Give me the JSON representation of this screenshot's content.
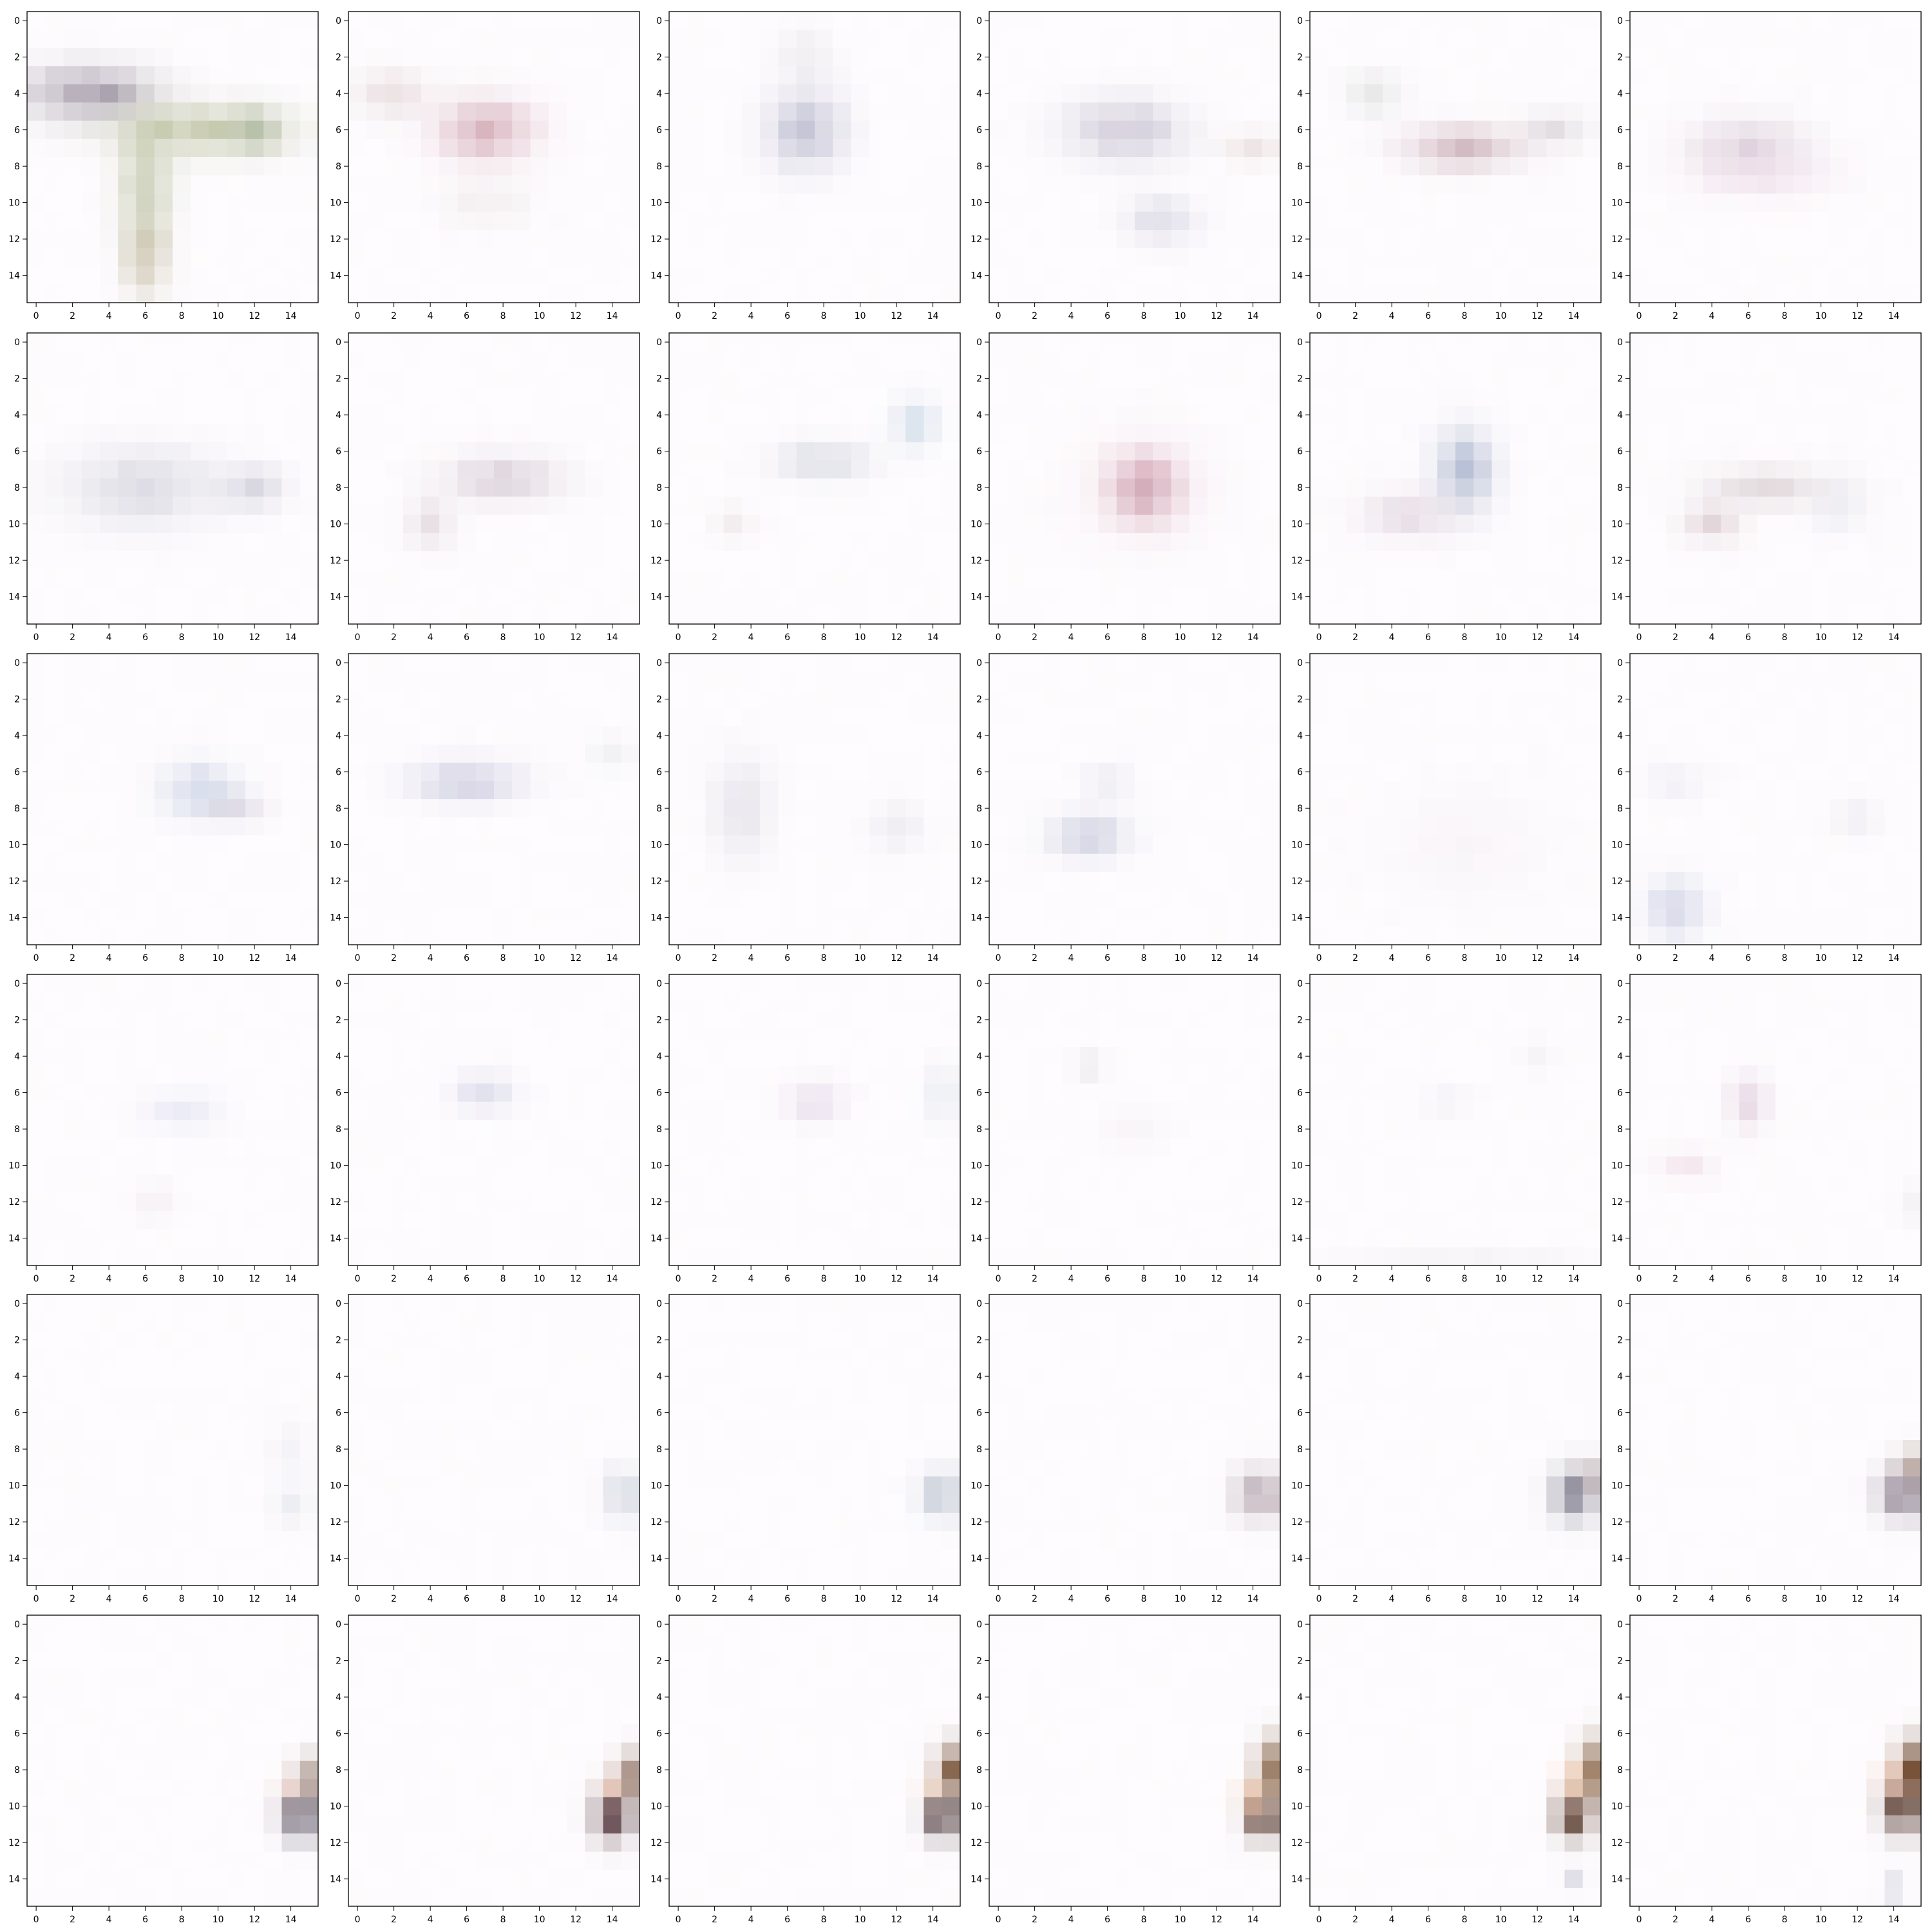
{
  "figure": {
    "layout": "6x6 grid of heatmap panels",
    "background": "#ffffff",
    "frame_color": "#000000"
  },
  "chart_data": {
    "type": "heatmap",
    "grid": [
      6,
      6
    ],
    "pixels_per_panel": [
      16,
      16
    ],
    "xticks": [
      "0",
      "2",
      "4",
      "6",
      "8",
      "10",
      "12",
      "14"
    ],
    "yticks": [
      "0",
      "2",
      "4",
      "6",
      "8",
      "10",
      "12",
      "14"
    ],
    "xlim": [
      -0.5,
      15.5
    ],
    "ylim": [
      15.5,
      -0.5
    ],
    "title": "",
    "xlabel": "",
    "ylabel": "",
    "panels": [
      {
        "index": 1,
        "blobs": [
          {
            "x": 3,
            "y": 4,
            "rx": 3.2,
            "ry": 1.4,
            "color": "#8f8596",
            "strength": 0.75
          },
          {
            "x": 9,
            "y": 6,
            "rx": 4.5,
            "ry": 1.3,
            "color": "#a6ae7e",
            "strength": 0.6
          },
          {
            "x": 6,
            "y": 9,
            "rx": 1.4,
            "ry": 3.5,
            "color": "#aab48c",
            "strength": 0.55
          },
          {
            "x": 6,
            "y": 13,
            "rx": 1.1,
            "ry": 2.0,
            "color": "#b6a98a",
            "strength": 0.55
          },
          {
            "x": 12,
            "y": 6,
            "rx": 1.3,
            "ry": 1.2,
            "color": "#9fae93",
            "strength": 0.55
          }
        ]
      },
      {
        "index": 2,
        "blobs": [
          {
            "x": 7,
            "y": 6,
            "rx": 2.5,
            "ry": 1.6,
            "color": "#c48b9c",
            "strength": 0.6
          },
          {
            "x": 2,
            "y": 4,
            "rx": 1.8,
            "ry": 1.2,
            "color": "#cbb5b7",
            "strength": 0.4
          },
          {
            "x": 7,
            "y": 10,
            "rx": 2.5,
            "ry": 1.2,
            "color": "#e0d8d8",
            "strength": 0.3
          }
        ]
      },
      {
        "index": 3,
        "blobs": [
          {
            "x": 7,
            "y": 6,
            "rx": 2.0,
            "ry": 2.0,
            "color": "#9c9cb8",
            "strength": 0.55
          },
          {
            "x": 7,
            "y": 2,
            "rx": 1.5,
            "ry": 1.5,
            "color": "#d6d0d8",
            "strength": 0.3
          }
        ]
      },
      {
        "index": 4,
        "blobs": [
          {
            "x": 7,
            "y": 6,
            "rx": 3.0,
            "ry": 1.6,
            "color": "#a8a0b8",
            "strength": 0.5
          },
          {
            "x": 9,
            "y": 11,
            "rx": 1.8,
            "ry": 1.2,
            "color": "#b8b8cc",
            "strength": 0.45
          },
          {
            "x": 14,
            "y": 7,
            "rx": 1.5,
            "ry": 0.8,
            "color": "#d8c8c4",
            "strength": 0.45
          }
        ]
      },
      {
        "index": 5,
        "blobs": [
          {
            "x": 8,
            "y": 7,
            "rx": 3.0,
            "ry": 1.1,
            "color": "#b58e9a",
            "strength": 0.55
          },
          {
            "x": 3,
            "y": 4,
            "rx": 1.5,
            "ry": 1.2,
            "color": "#cdd0cd",
            "strength": 0.4
          },
          {
            "x": 13,
            "y": 6,
            "rx": 1.6,
            "ry": 0.9,
            "color": "#c0b8bc",
            "strength": 0.4
          }
        ]
      },
      {
        "index": 6,
        "blobs": [
          {
            "x": 6,
            "y": 7,
            "rx": 3.0,
            "ry": 1.5,
            "color": "#c0a8bc",
            "strength": 0.45
          },
          {
            "x": 7,
            "y": 8.5,
            "rx": 3.5,
            "ry": 1.2,
            "color": "#e8c8dc",
            "strength": 0.35
          }
        ]
      },
      {
        "index": 7,
        "blobs": [
          {
            "x": 6,
            "y": 8,
            "rx": 4.0,
            "ry": 2.0,
            "color": "#b8b8c8",
            "strength": 0.45
          },
          {
            "x": 12,
            "y": 8,
            "rx": 1.5,
            "ry": 1.0,
            "color": "#a8a8bc",
            "strength": 0.45
          }
        ]
      },
      {
        "index": 8,
        "blobs": [
          {
            "x": 8,
            "y": 7.5,
            "rx": 3.0,
            "ry": 1.2,
            "color": "#b8a4b4",
            "strength": 0.45
          },
          {
            "x": 4,
            "y": 10,
            "rx": 1.2,
            "ry": 1.3,
            "color": "#c8b8c0",
            "strength": 0.4
          }
        ]
      },
      {
        "index": 9,
        "blobs": [
          {
            "x": 8,
            "y": 6.5,
            "rx": 2.5,
            "ry": 1.0,
            "color": "#b8bccc",
            "strength": 0.45
          },
          {
            "x": 13,
            "y": 4.5,
            "rx": 1.2,
            "ry": 1.3,
            "color": "#b8ccdc",
            "strength": 0.5
          },
          {
            "x": 3,
            "y": 10,
            "rx": 1.0,
            "ry": 1.0,
            "color": "#dcd0d0",
            "strength": 0.3
          }
        ]
      },
      {
        "index": 10,
        "blobs": [
          {
            "x": 8,
            "y": 8,
            "rx": 1.6,
            "ry": 1.6,
            "color": "#b07088",
            "strength": 0.65
          },
          {
            "x": 8,
            "y": 8,
            "rx": 3.0,
            "ry": 2.5,
            "color": "#e4bcc8",
            "strength": 0.35
          }
        ]
      },
      {
        "index": 11,
        "blobs": [
          {
            "x": 8,
            "y": 7,
            "rx": 1.5,
            "ry": 2.0,
            "color": "#8c9cbc",
            "strength": 0.6
          },
          {
            "x": 5,
            "y": 9.5,
            "rx": 2.5,
            "ry": 1.2,
            "color": "#c8b0c4",
            "strength": 0.4
          }
        ]
      },
      {
        "index": 12,
        "blobs": [
          {
            "x": 7,
            "y": 8,
            "rx": 3.0,
            "ry": 1.0,
            "color": "#c0b0b4",
            "strength": 0.45
          },
          {
            "x": 4,
            "y": 10,
            "rx": 1.5,
            "ry": 1.0,
            "color": "#c8b0b4",
            "strength": 0.45
          },
          {
            "x": 11,
            "y": 9,
            "rx": 1.5,
            "ry": 1.5,
            "color": "#ccd0dc",
            "strength": 0.3
          }
        ]
      },
      {
        "index": 13,
        "blobs": [
          {
            "x": 9,
            "y": 7,
            "rx": 2.0,
            "ry": 1.4,
            "color": "#a8b8d4",
            "strength": 0.5
          },
          {
            "x": 11,
            "y": 8,
            "rx": 1.5,
            "ry": 0.8,
            "color": "#bcb4c8",
            "strength": 0.4
          }
        ]
      },
      {
        "index": 14,
        "blobs": [
          {
            "x": 6,
            "y": 6.5,
            "rx": 2.8,
            "ry": 1.1,
            "color": "#a8a8c8",
            "strength": 0.5
          },
          {
            "x": 14,
            "y": 5,
            "rx": 1.3,
            "ry": 1.0,
            "color": "#d8dcdc",
            "strength": 0.3
          }
        ]
      },
      {
        "index": 15,
        "blobs": [
          {
            "x": 3.5,
            "y": 8,
            "rx": 1.5,
            "ry": 2.5,
            "color": "#c4c0d0",
            "strength": 0.4
          },
          {
            "x": 12,
            "y": 9,
            "rx": 1.5,
            "ry": 1.2,
            "color": "#d0ccd8",
            "strength": 0.3
          }
        ]
      },
      {
        "index": 16,
        "blobs": [
          {
            "x": 5,
            "y": 9.5,
            "rx": 2.0,
            "ry": 1.2,
            "color": "#a8acc8",
            "strength": 0.5
          },
          {
            "x": 6,
            "y": 6.5,
            "rx": 1.2,
            "ry": 1.0,
            "color": "#ccccdc",
            "strength": 0.3
          }
        ]
      },
      {
        "index": 17,
        "blobs": [
          {
            "x": 8,
            "y": 10,
            "rx": 4.0,
            "ry": 3.0,
            "color": "#ece4ec",
            "strength": 0.25
          }
        ]
      },
      {
        "index": 18,
        "blobs": [
          {
            "x": 2,
            "y": 13.5,
            "rx": 1.5,
            "ry": 1.5,
            "color": "#a8b0d0",
            "strength": 0.5
          },
          {
            "x": 2,
            "y": 6.5,
            "rx": 1.5,
            "ry": 1.0,
            "color": "#d4d4e4",
            "strength": 0.3
          },
          {
            "x": 12,
            "y": 8.5,
            "rx": 1.2,
            "ry": 0.8,
            "color": "#d4d0dc",
            "strength": 0.3
          }
        ]
      },
      {
        "index": 19,
        "blobs": [
          {
            "x": 8,
            "y": 7,
            "rx": 2.0,
            "ry": 1.0,
            "color": "#ccd0e8",
            "strength": 0.35
          },
          {
            "x": 6.5,
            "y": 12,
            "rx": 1.0,
            "ry": 1.0,
            "color": "#e4d8e0",
            "strength": 0.3
          }
        ]
      },
      {
        "index": 20,
        "blobs": [
          {
            "x": 7,
            "y": 6,
            "rx": 1.5,
            "ry": 1.0,
            "color": "#b8bcd8",
            "strength": 0.45
          }
        ]
      },
      {
        "index": 21,
        "blobs": [
          {
            "x": 7.5,
            "y": 6.5,
            "rx": 1.5,
            "ry": 1.0,
            "color": "#d4c0dc",
            "strength": 0.45
          },
          {
            "x": 14.5,
            "y": 6,
            "rx": 0.9,
            "ry": 1.5,
            "color": "#c8d4e0",
            "strength": 0.4
          }
        ]
      },
      {
        "index": 22,
        "blobs": [
          {
            "x": 5,
            "y": 4.5,
            "rx": 0.9,
            "ry": 0.8,
            "color": "#d8d4dc",
            "strength": 0.35
          },
          {
            "x": 7.5,
            "y": 8,
            "rx": 1.5,
            "ry": 1.0,
            "color": "#ece4ec",
            "strength": 0.3
          }
        ]
      },
      {
        "index": 23,
        "blobs": [
          {
            "x": 7,
            "y": 6.5,
            "rx": 1.5,
            "ry": 0.8,
            "color": "#e4e0ec",
            "strength": 0.3
          },
          {
            "x": 12,
            "y": 4,
            "rx": 0.9,
            "ry": 0.9,
            "color": "#e0dce4",
            "strength": 0.3
          },
          {
            "x": 8,
            "y": 15,
            "rx": 6.0,
            "ry": 0.6,
            "color": "#e8e4e8",
            "strength": 0.3
          }
        ]
      },
      {
        "index": 24,
        "blobs": [
          {
            "x": 6,
            "y": 6.5,
            "rx": 1.0,
            "ry": 1.3,
            "color": "#c8aac4",
            "strength": 0.45
          },
          {
            "x": 2.5,
            "y": 10,
            "rx": 1.5,
            "ry": 0.8,
            "color": "#e4c4d0",
            "strength": 0.35
          },
          {
            "x": 15,
            "y": 12,
            "rx": 0.8,
            "ry": 1.0,
            "color": "#dcdcdc",
            "strength": 0.3
          }
        ]
      },
      {
        "index": 25,
        "blobs": [
          {
            "x": 14,
            "y": 8,
            "rx": 1.0,
            "ry": 1.5,
            "color": "#dcdce4",
            "strength": 0.3
          },
          {
            "x": 14,
            "y": 11,
            "rx": 1.0,
            "ry": 1.0,
            "color": "#ccd4e0",
            "strength": 0.35
          }
        ]
      },
      {
        "index": 26,
        "blobs": [
          {
            "x": 14.5,
            "y": 10.5,
            "rx": 1.0,
            "ry": 1.3,
            "color": "#b0b8c8",
            "strength": 0.5
          }
        ]
      },
      {
        "index": 27,
        "blobs": [
          {
            "x": 14.5,
            "y": 10.5,
            "rx": 1.2,
            "ry": 1.2,
            "color": "#98a4b8",
            "strength": 0.55
          }
        ]
      },
      {
        "index": 28,
        "blobs": [
          {
            "x": 14.3,
            "y": 10.5,
            "rx": 1.2,
            "ry": 1.3,
            "color": "#8a7480",
            "strength": 0.6
          }
        ]
      },
      {
        "index": 29,
        "blobs": [
          {
            "x": 14,
            "y": 10.5,
            "rx": 1.1,
            "ry": 1.3,
            "color": "#5c5c70",
            "strength": 0.75
          },
          {
            "x": 15,
            "y": 9.5,
            "rx": 0.9,
            "ry": 1.0,
            "color": "#b4a4a4",
            "strength": 0.5
          }
        ]
      },
      {
        "index": 30,
        "blobs": [
          {
            "x": 14.5,
            "y": 10.5,
            "rx": 1.2,
            "ry": 1.2,
            "color": "#5c4c64",
            "strength": 0.75
          },
          {
            "x": 15,
            "y": 9,
            "rx": 0.8,
            "ry": 1.0,
            "color": "#9c8478",
            "strength": 0.6
          }
        ]
      },
      {
        "index": 31,
        "blobs": [
          {
            "x": 14.5,
            "y": 10.5,
            "rx": 1.0,
            "ry": 1.2,
            "color": "#3c3448",
            "strength": 0.8
          },
          {
            "x": 15,
            "y": 8.5,
            "rx": 0.8,
            "ry": 1.2,
            "color": "#8c7468",
            "strength": 0.65
          },
          {
            "x": 14,
            "y": 9,
            "rx": 0.8,
            "ry": 0.8,
            "color": "#f8d0c0",
            "strength": 0.5
          }
        ]
      },
      {
        "index": 32,
        "blobs": [
          {
            "x": 14,
            "y": 10.5,
            "rx": 1.0,
            "ry": 1.3,
            "color": "#3c1c24",
            "strength": 0.8
          },
          {
            "x": 15,
            "y": 8.5,
            "rx": 0.8,
            "ry": 1.3,
            "color": "#7c5c4c",
            "strength": 0.7
          },
          {
            "x": 14,
            "y": 9,
            "rx": 0.8,
            "ry": 0.8,
            "color": "#fcd0b8",
            "strength": 0.5
          }
        ]
      },
      {
        "index": 33,
        "blobs": [
          {
            "x": 14.5,
            "y": 10.5,
            "rx": 0.9,
            "ry": 1.2,
            "color": "#2c1418",
            "strength": 0.85
          },
          {
            "x": 15,
            "y": 8,
            "rx": 0.8,
            "ry": 1.3,
            "color": "#6c4428",
            "strength": 0.75
          },
          {
            "x": 14,
            "y": 9,
            "rx": 0.8,
            "ry": 0.8,
            "color": "#fcd8c0",
            "strength": 0.5
          }
        ]
      },
      {
        "index": 34,
        "blobs": [
          {
            "x": 14.5,
            "y": 10.5,
            "rx": 0.9,
            "ry": 1.2,
            "color": "#3c1c10",
            "strength": 0.85
          },
          {
            "x": 15,
            "y": 8,
            "rx": 0.8,
            "ry": 1.5,
            "color": "#6c4420",
            "strength": 0.8
          },
          {
            "x": 14,
            "y": 9.5,
            "rx": 0.8,
            "ry": 1.0,
            "color": "#fcc8a8",
            "strength": 0.55
          }
        ]
      },
      {
        "index": 35,
        "blobs": [
          {
            "x": 14,
            "y": 10.5,
            "rx": 0.9,
            "ry": 1.2,
            "color": "#3c1808",
            "strength": 0.85
          },
          {
            "x": 15,
            "y": 8,
            "rx": 0.8,
            "ry": 1.5,
            "color": "#6c4420",
            "strength": 0.8
          },
          {
            "x": 14,
            "y": 8.5,
            "rx": 0.8,
            "ry": 1.0,
            "color": "#fcc8a0",
            "strength": 0.55
          },
          {
            "x": 14,
            "y": 14,
            "rx": 0.6,
            "ry": 0.6,
            "color": "#b8b8c8",
            "strength": 0.5
          }
        ]
      },
      {
        "index": 36,
        "blobs": [
          {
            "x": 14.5,
            "y": 10,
            "rx": 1.0,
            "ry": 1.4,
            "color": "#3c1c10",
            "strength": 0.85
          },
          {
            "x": 15,
            "y": 8,
            "rx": 0.8,
            "ry": 1.5,
            "color": "#5c3418",
            "strength": 0.85
          },
          {
            "x": 14,
            "y": 8.5,
            "rx": 0.8,
            "ry": 1.0,
            "color": "#f8c8b0",
            "strength": 0.55
          },
          {
            "x": 14,
            "y": 14.5,
            "rx": 0.6,
            "ry": 0.6,
            "color": "#a8a8c0",
            "strength": 0.5
          }
        ]
      }
    ]
  }
}
